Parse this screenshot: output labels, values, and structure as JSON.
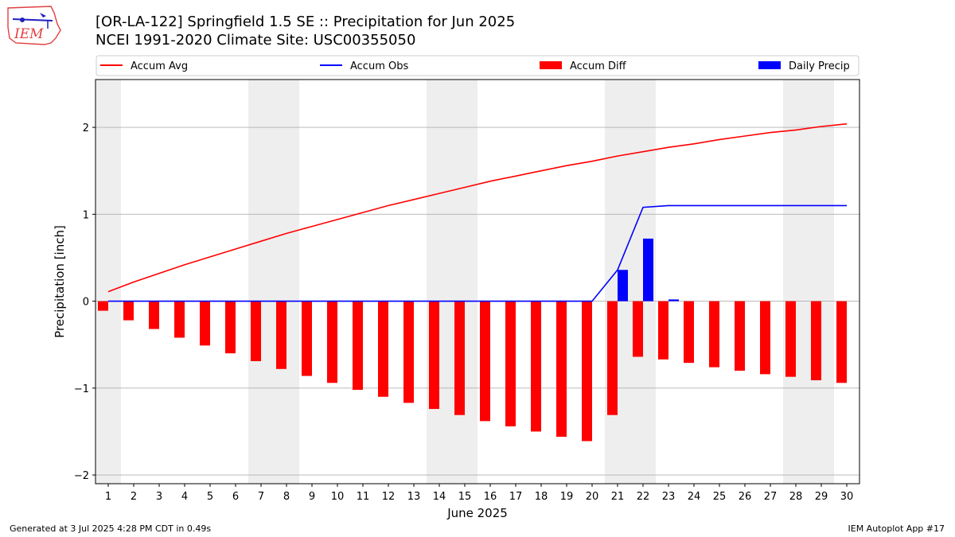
{
  "header": {
    "title_line1": "[OR-LA-122] Springfield 1.5 SE :: Precipitation for Jun 2025",
    "title_line2": "NCEI 1991-2020 Climate Site: USC00355050"
  },
  "logo": {
    "text": "IEM"
  },
  "footer": {
    "generated": "Generated at 3 Jul 2025 4:28 PM CDT in 0.49s",
    "app": "IEM Autoplot App #17"
  },
  "colors": {
    "avg": "#ff0000",
    "obs": "#0000ff",
    "diff": "#ff0000",
    "daily": "#0000ff",
    "weekend": "#eeeeee",
    "grid": "#b0b0b0"
  },
  "chart_data": {
    "type": "bar",
    "title": "[OR-LA-122] Springfield 1.5 SE :: Precipitation for Jun 2025",
    "subtitle": "NCEI 1991-2020 Climate Site: USC00355050",
    "xlabel": "June 2025",
    "ylabel": "Precipitation [inch]",
    "ylim": [
      -2.1,
      2.55
    ],
    "yticks": [
      -2,
      -1,
      0,
      1,
      2
    ],
    "ytick_labels": [
      "−2",
      "−1",
      "0",
      "1",
      "2"
    ],
    "xlim": [
      0.5,
      30.5
    ],
    "x": [
      1,
      2,
      3,
      4,
      5,
      6,
      7,
      8,
      9,
      10,
      11,
      12,
      13,
      14,
      15,
      16,
      17,
      18,
      19,
      20,
      21,
      22,
      23,
      24,
      25,
      26,
      27,
      28,
      29,
      30
    ],
    "weekend_spans": [
      [
        0.5,
        1.5
      ],
      [
        6.5,
        8.5
      ],
      [
        13.5,
        15.5
      ],
      [
        20.5,
        22.5
      ],
      [
        27.5,
        29.5
      ]
    ],
    "grid": true,
    "legend_position": "top, above plot",
    "series": [
      {
        "name": "Accum Avg",
        "kind": "line",
        "values": [
          0.11,
          0.22,
          0.32,
          0.42,
          0.51,
          0.6,
          0.69,
          0.78,
          0.86,
          0.94,
          1.02,
          1.1,
          1.17,
          1.24,
          1.31,
          1.38,
          1.44,
          1.5,
          1.56,
          1.61,
          1.67,
          1.72,
          1.77,
          1.81,
          1.86,
          1.9,
          1.94,
          1.97,
          2.01,
          2.04
        ]
      },
      {
        "name": "Accum Obs",
        "kind": "line",
        "values": [
          0,
          0,
          0,
          0,
          0,
          0,
          0,
          0,
          0,
          0,
          0,
          0,
          0,
          0,
          0,
          0,
          0,
          0,
          0,
          0,
          0.36,
          1.08,
          1.1,
          1.1,
          1.1,
          1.1,
          1.1,
          1.1,
          1.1,
          1.1
        ]
      },
      {
        "name": "Accum Diff",
        "kind": "bar",
        "values": [
          -0.11,
          -0.22,
          -0.32,
          -0.42,
          -0.51,
          -0.6,
          -0.69,
          -0.78,
          -0.86,
          -0.94,
          -1.02,
          -1.1,
          -1.17,
          -1.24,
          -1.31,
          -1.38,
          -1.44,
          -1.5,
          -1.56,
          -1.61,
          -1.31,
          -0.64,
          -0.67,
          -0.71,
          -0.76,
          -0.8,
          -0.84,
          -0.87,
          -0.91,
          -0.94
        ]
      },
      {
        "name": "Daily Precip",
        "kind": "bar",
        "values": [
          0,
          0,
          0,
          0,
          0,
          0,
          0,
          0,
          0,
          0,
          0,
          0,
          0,
          0,
          0,
          0,
          0,
          0,
          0,
          0,
          0.36,
          0.72,
          0.02,
          0,
          0,
          0,
          0,
          0,
          0,
          0
        ]
      }
    ]
  }
}
